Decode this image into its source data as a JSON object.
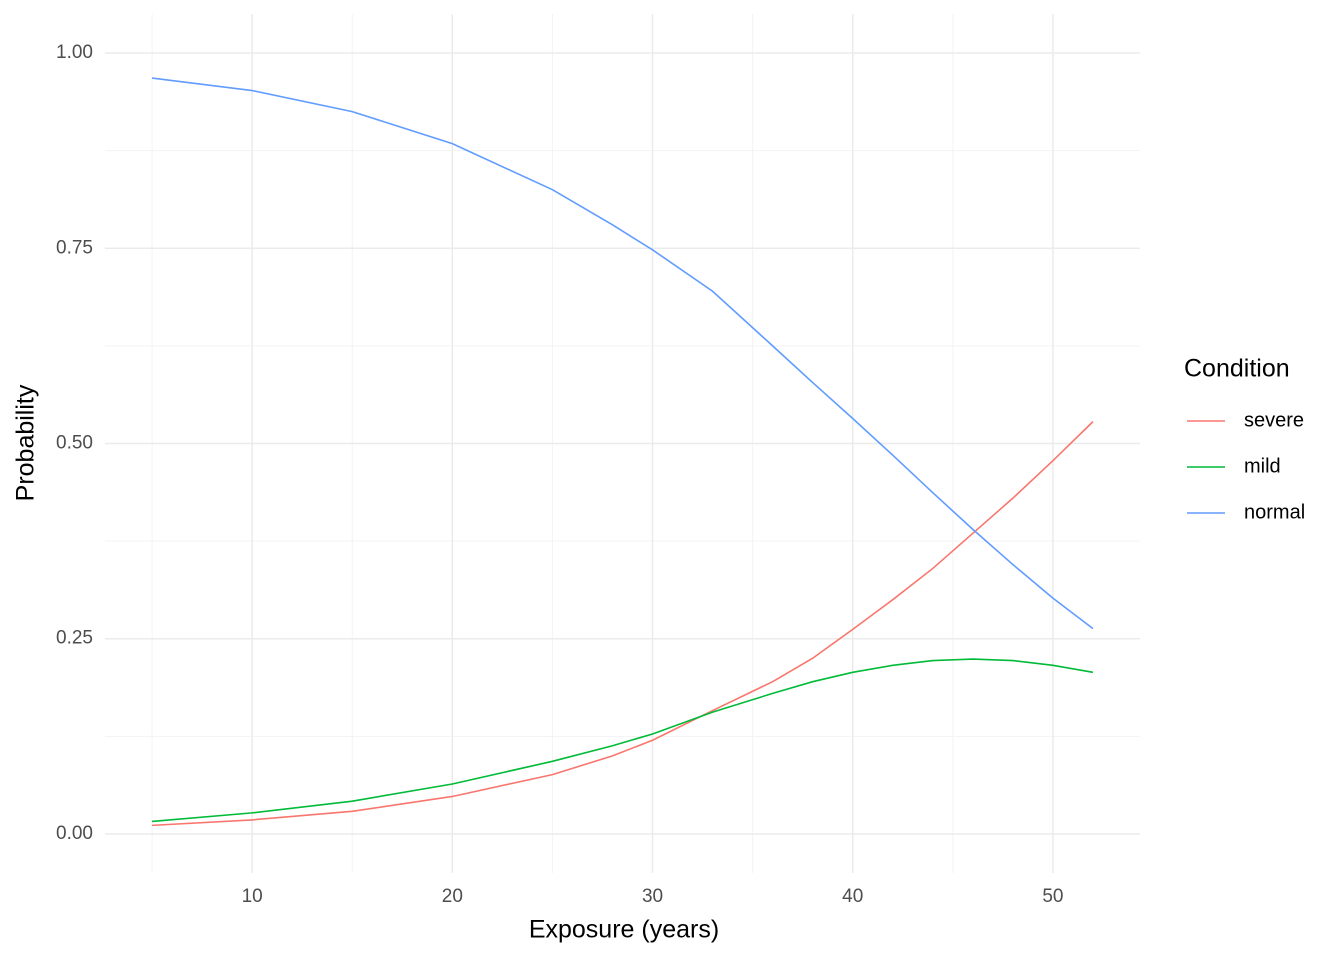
{
  "chart_data": {
    "type": "line",
    "x_label": "Exposure (years)",
    "y_label": "Probability",
    "legend_title": "Condition",
    "x": [
      5,
      10,
      15,
      20,
      25,
      28,
      30,
      33,
      36,
      38,
      40,
      42,
      44,
      46,
      48,
      50,
      52
    ],
    "series": [
      {
        "name": "severe",
        "color": "#F8766D",
        "values": [
          0.011,
          0.018,
          0.029,
          0.048,
          0.076,
          0.1,
          0.12,
          0.158,
          0.195,
          0.225,
          0.262,
          0.3,
          0.34,
          0.385,
          0.43,
          0.478,
          0.528
        ]
      },
      {
        "name": "mild",
        "color": "#00BA38",
        "values": [
          0.016,
          0.027,
          0.042,
          0.064,
          0.093,
          0.113,
          0.128,
          0.156,
          0.18,
          0.195,
          0.207,
          0.216,
          0.222,
          0.224,
          0.222,
          0.216,
          0.207
        ]
      },
      {
        "name": "normal",
        "color": "#619CFF",
        "values": [
          0.968,
          0.952,
          0.925,
          0.884,
          0.825,
          0.78,
          0.748,
          0.695,
          0.625,
          0.578,
          0.532,
          0.485,
          0.437,
          0.39,
          0.345,
          0.302,
          0.263
        ]
      }
    ],
    "xlim": [
      2.65,
      54.35
    ],
    "xticks": [
      10,
      20,
      30,
      40,
      50
    ],
    "ylim": [
      -0.05,
      1.05
    ],
    "yticks": [
      {
        "value": 0,
        "label": "0.00"
      },
      {
        "value": 0.25,
        "label": "0.25"
      },
      {
        "value": 0.5,
        "label": "0.50"
      },
      {
        "value": 0.75,
        "label": "0.75"
      },
      {
        "value": 1,
        "label": "1.00"
      }
    ],
    "grid": true,
    "legend_position": "right"
  }
}
